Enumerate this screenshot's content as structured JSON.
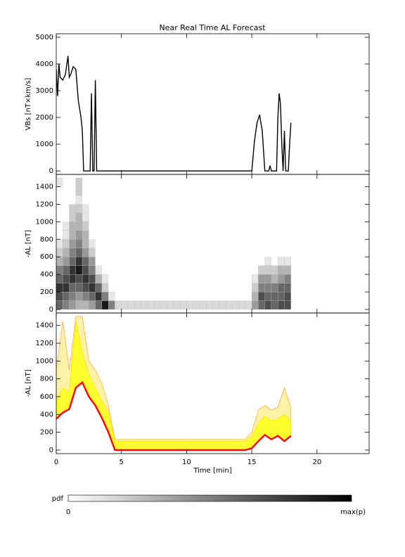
{
  "chart_data": [
    {
      "type": "line",
      "title": "Near Real Time AL Forecast",
      "ylabel": "VBs [nT×km/s]",
      "xlim": [
        0,
        24
      ],
      "xticks": [
        0,
        5,
        10,
        15,
        20
      ],
      "ylim": [
        -130,
        5130
      ],
      "yticks": [
        0,
        1000,
        2000,
        3000,
        4000,
        5000
      ],
      "x": [
        0,
        0.1,
        0.2,
        0.3,
        0.5,
        0.7,
        0.9,
        1.0,
        1.1,
        1.3,
        1.5,
        1.7,
        1.8,
        1.9,
        2.0,
        2.1,
        2.6,
        2.7,
        2.8,
        2.9,
        3.0,
        3.1,
        15.0,
        15.2,
        15.4,
        15.6,
        15.8,
        16.0,
        16.3,
        16.4,
        16.5,
        16.9,
        17.0,
        17.1,
        17.2,
        17.3,
        17.4,
        17.5,
        17.6,
        17.8,
        17.9,
        18.0
      ],
      "series": [
        {
          "color": "#000000",
          "values": [
            3800,
            2800,
            4000,
            3500,
            3400,
            3600,
            4300,
            3500,
            3600,
            3900,
            3800,
            2600,
            2300,
            2000,
            1500,
            0,
            0,
            2900,
            0,
            0,
            3400,
            0,
            0,
            1100,
            1800,
            2100,
            1500,
            0,
            0,
            200,
            0,
            0,
            2000,
            2900,
            2500,
            1000,
            0,
            1500,
            0,
            0,
            1000,
            1800
          ]
        }
      ]
    },
    {
      "type": "heatmap",
      "ylabel": "-AL [nT]",
      "xlim": [
        0,
        24
      ],
      "xticks": [
        0,
        5,
        10,
        15,
        20
      ],
      "ylim": [
        -40,
        1540
      ],
      "yticks": [
        0,
        200,
        400,
        600,
        800,
        1000,
        1200,
        1400
      ],
      "zlim": [
        0,
        1
      ],
      "x_bins": [
        0,
        0.5,
        1,
        1.5,
        2,
        2.5,
        3,
        3.5,
        4,
        4.5,
        5,
        5.5,
        6,
        6.5,
        7,
        7.5,
        8,
        8.5,
        9,
        9.5,
        10,
        10.5,
        11,
        11.5,
        12,
        12.5,
        13,
        13.5,
        14,
        14.5,
        15,
        15.5,
        16,
        16.5,
        17,
        17.5,
        18
      ],
      "y_bins": [
        0,
        100,
        200,
        300,
        400,
        500,
        600,
        700,
        800,
        900,
        1000,
        1100,
        1200,
        1300,
        1400,
        1500
      ],
      "z": [
        [
          0.6,
          0.7,
          0.8,
          0.6,
          0.5,
          0.3,
          0.2,
          0.1,
          0,
          0,
          0,
          0,
          0,
          0,
          0.1
        ],
        [
          0.5,
          0.6,
          0.8,
          0.7,
          0.6,
          0.4,
          0.3,
          0.2,
          0.1,
          0.1,
          0,
          0,
          0,
          0,
          0
        ],
        [
          0.4,
          0.5,
          0.6,
          0.8,
          0.8,
          0.6,
          0.5,
          0.4,
          0.3,
          0.3,
          0.2,
          0.2,
          0,
          0,
          0
        ],
        [
          0.3,
          0.4,
          0.6,
          0.7,
          0.9,
          0.8,
          0.6,
          0.5,
          0.4,
          0.3,
          0.3,
          0.2,
          0.1,
          0.2,
          0.2
        ],
        [
          0.3,
          0.5,
          0.7,
          0.8,
          0.7,
          0.6,
          0.4,
          0.3,
          0.3,
          0.2,
          0.1,
          0.1,
          0,
          0,
          0
        ],
        [
          0.4,
          0.6,
          0.8,
          0.7,
          0.5,
          0.4,
          0.2,
          0.1,
          0,
          0,
          0,
          0,
          0,
          0,
          0
        ],
        [
          0.6,
          0.8,
          0.6,
          0.3,
          0.1,
          0,
          0,
          0,
          0,
          0,
          0,
          0,
          0,
          0,
          0
        ],
        [
          0.9,
          0.5,
          0.2,
          0.1,
          0,
          0,
          0,
          0,
          0,
          0,
          0,
          0,
          0,
          0,
          0
        ],
        [
          0.5,
          0.1,
          0,
          0,
          0,
          0,
          0,
          0,
          0,
          0,
          0,
          0,
          0,
          0,
          0
        ],
        [
          0.15,
          0,
          0,
          0,
          0,
          0,
          0,
          0,
          0,
          0,
          0,
          0,
          0,
          0,
          0
        ],
        [
          0.15,
          0,
          0,
          0,
          0,
          0,
          0,
          0,
          0,
          0,
          0,
          0,
          0,
          0,
          0
        ],
        [
          0.15,
          0,
          0,
          0,
          0,
          0,
          0,
          0,
          0,
          0,
          0,
          0,
          0,
          0,
          0
        ],
        [
          0.15,
          0,
          0,
          0,
          0,
          0,
          0,
          0,
          0,
          0,
          0,
          0,
          0,
          0,
          0
        ],
        [
          0.15,
          0,
          0,
          0,
          0,
          0,
          0,
          0,
          0,
          0,
          0,
          0,
          0,
          0,
          0
        ],
        [
          0.15,
          0,
          0,
          0,
          0,
          0,
          0,
          0,
          0,
          0,
          0,
          0,
          0,
          0,
          0
        ],
        [
          0.15,
          0,
          0,
          0,
          0,
          0,
          0,
          0,
          0,
          0,
          0,
          0,
          0,
          0,
          0
        ],
        [
          0.15,
          0,
          0,
          0,
          0,
          0,
          0,
          0,
          0,
          0,
          0,
          0,
          0,
          0,
          0
        ],
        [
          0.15,
          0,
          0,
          0,
          0,
          0,
          0,
          0,
          0,
          0,
          0,
          0,
          0,
          0,
          0
        ],
        [
          0.15,
          0,
          0,
          0,
          0,
          0,
          0,
          0,
          0,
          0,
          0,
          0,
          0,
          0,
          0
        ],
        [
          0.15,
          0,
          0,
          0,
          0,
          0,
          0,
          0,
          0,
          0,
          0,
          0,
          0,
          0,
          0
        ],
        [
          0.15,
          0,
          0,
          0,
          0,
          0,
          0,
          0,
          0,
          0,
          0,
          0,
          0,
          0,
          0
        ],
        [
          0.15,
          0,
          0,
          0,
          0,
          0,
          0,
          0,
          0,
          0,
          0,
          0,
          0,
          0,
          0
        ],
        [
          0.15,
          0,
          0,
          0,
          0,
          0,
          0,
          0,
          0,
          0,
          0,
          0,
          0,
          0,
          0
        ],
        [
          0.15,
          0,
          0,
          0,
          0,
          0,
          0,
          0,
          0,
          0,
          0,
          0,
          0,
          0,
          0
        ],
        [
          0.15,
          0,
          0,
          0,
          0,
          0,
          0,
          0,
          0,
          0,
          0,
          0,
          0,
          0,
          0
        ],
        [
          0.15,
          0,
          0,
          0,
          0,
          0,
          0,
          0,
          0,
          0,
          0,
          0,
          0,
          0,
          0
        ],
        [
          0.15,
          0,
          0,
          0,
          0,
          0,
          0,
          0,
          0,
          0,
          0,
          0,
          0,
          0,
          0
        ],
        [
          0.15,
          0,
          0,
          0,
          0,
          0,
          0,
          0,
          0,
          0,
          0,
          0,
          0,
          0,
          0
        ],
        [
          0.15,
          0,
          0,
          0,
          0,
          0,
          0,
          0,
          0,
          0,
          0,
          0,
          0,
          0,
          0
        ],
        [
          0.15,
          0,
          0,
          0,
          0,
          0,
          0,
          0,
          0,
          0,
          0,
          0,
          0,
          0,
          0
        ],
        [
          0.4,
          0.3,
          0.2,
          0.1,
          0,
          0,
          0,
          0,
          0,
          0,
          0,
          0,
          0,
          0,
          0
        ],
        [
          0.6,
          0.7,
          0.5,
          0.4,
          0.2,
          0,
          0,
          0,
          0,
          0,
          0,
          0,
          0,
          0,
          0
        ],
        [
          0.7,
          0.6,
          0.5,
          0.4,
          0.2,
          0.1,
          0,
          0,
          0,
          0,
          0,
          0,
          0,
          0,
          0
        ],
        [
          0.6,
          0.6,
          0.5,
          0.3,
          0.2,
          0,
          0,
          0,
          0,
          0,
          0,
          0,
          0,
          0,
          0
        ],
        [
          0.7,
          0.6,
          0.6,
          0.4,
          0.3,
          0.1,
          0,
          0,
          0,
          0,
          0,
          0,
          0,
          0,
          0
        ],
        [
          0.7,
          0.7,
          0.6,
          0.5,
          0.3,
          0.1,
          0,
          0,
          0,
          0,
          0,
          0,
          0,
          0,
          0
        ]
      ],
      "colorbar": {
        "label": "pdf",
        "min_label": "0",
        "max_label": "max(p)"
      }
    },
    {
      "type": "area",
      "ylabel": "-AL [nT]",
      "xlabel": "Time [min]",
      "xlim": [
        0,
        24
      ],
      "xticks": [
        0,
        5,
        10,
        15,
        20
      ],
      "ylim": [
        -40,
        1540
      ],
      "yticks": [
        0,
        200,
        400,
        600,
        800,
        1000,
        1200,
        1400
      ],
      "x": [
        0,
        0.5,
        1,
        1.5,
        2,
        2.5,
        3,
        3.5,
        4,
        4.5,
        5,
        5.5,
        6,
        6.5,
        7,
        7.5,
        8,
        8.5,
        9,
        9.5,
        10,
        10.5,
        11,
        11.5,
        12,
        12.5,
        13,
        13.5,
        14,
        14.5,
        15,
        15.5,
        16,
        16.5,
        17,
        17.5,
        18
      ],
      "series": [
        {
          "color": "#ffb040",
          "fill": "#fff2a8",
          "values": [
            900,
            1450,
            900,
            1500,
            1500,
            1000,
            900,
            750,
            500,
            120,
            120,
            120,
            120,
            120,
            120,
            120,
            120,
            120,
            120,
            120,
            120,
            120,
            120,
            120,
            120,
            120,
            120,
            120,
            120,
            120,
            200,
            450,
            500,
            450,
            480,
            700,
            480
          ]
        },
        {
          "color": "#ffe000",
          "fill": "#ffff30",
          "values": [
            550,
            700,
            650,
            1450,
            1100,
            850,
            700,
            550,
            420,
            100,
            100,
            100,
            100,
            100,
            100,
            100,
            100,
            100,
            100,
            100,
            100,
            100,
            100,
            100,
            100,
            100,
            100,
            100,
            100,
            100,
            150,
            300,
            380,
            330,
            350,
            400,
            330
          ]
        },
        {
          "color": "#ff0000",
          "values": [
            350,
            420,
            460,
            700,
            760,
            600,
            500,
            360,
            200,
            0,
            0,
            0,
            0,
            0,
            0,
            0,
            0,
            0,
            0,
            0,
            0,
            0,
            0,
            0,
            0,
            0,
            0,
            0,
            0,
            0,
            20,
            100,
            170,
            120,
            160,
            100,
            160
          ]
        }
      ]
    }
  ]
}
